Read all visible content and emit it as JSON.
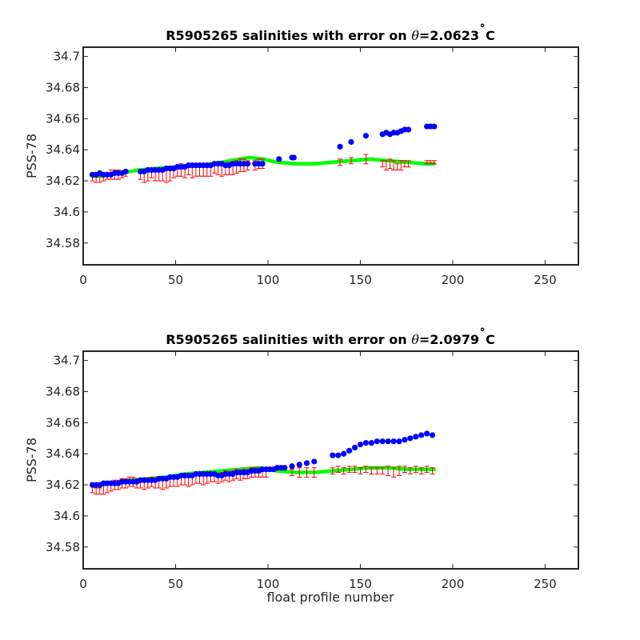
{
  "chart_data": [
    {
      "type": "scatter",
      "title_prefix": "R5905265 salinities with error on ",
      "title_symbol": "θ",
      "title_value": "=2.0623",
      "title_degree": "˚",
      "title_unit": "C",
      "xlabel": "",
      "ylabel": "PSS-78",
      "xlim": [
        0,
        268
      ],
      "ylim": [
        34.566,
        34.706
      ],
      "xticks": [
        0,
        50,
        100,
        150,
        200,
        250
      ],
      "yticks": [
        34.58,
        34.6,
        34.62,
        34.64,
        34.66,
        34.68,
        34.7
      ],
      "ytick_labels": [
        "34.58",
        "34.6",
        "34.62",
        "34.64",
        "34.66",
        "34.68",
        "34.7"
      ],
      "colors": {
        "float": "#0000ff",
        "mapped": "#00ff00",
        "error": "#ff0000"
      },
      "series": [
        {
          "role": "float",
          "x": [
            5,
            7,
            9,
            11,
            13,
            15,
            17,
            19,
            21,
            23,
            31,
            33,
            35,
            37,
            39,
            41,
            43,
            45,
            47,
            49,
            51,
            53,
            55,
            57,
            59,
            61,
            63,
            65,
            67,
            69,
            71,
            73,
            75,
            77,
            79,
            81,
            83,
            85,
            87,
            89,
            93,
            95,
            97,
            106,
            113,
            114,
            139,
            145,
            153,
            162,
            164,
            166,
            168,
            170,
            172,
            174,
            176,
            186,
            188,
            190
          ],
          "y": [
            34.624,
            34.624,
            34.625,
            34.624,
            34.624,
            34.624,
            34.625,
            34.625,
            34.625,
            34.626,
            34.626,
            34.626,
            34.627,
            34.627,
            34.627,
            34.627,
            34.627,
            34.628,
            34.628,
            34.628,
            34.629,
            34.629,
            34.629,
            34.63,
            34.63,
            34.63,
            34.63,
            34.63,
            34.63,
            34.63,
            34.631,
            34.631,
            34.631,
            34.63,
            34.63,
            34.631,
            34.631,
            34.631,
            34.631,
            34.631,
            34.631,
            34.631,
            34.631,
            34.634,
            34.635,
            34.635,
            34.642,
            34.645,
            34.649,
            34.65,
            34.651,
            34.65,
            34.651,
            34.651,
            34.652,
            34.653,
            34.653,
            34.655,
            34.655,
            34.655
          ]
        },
        {
          "role": "mapped",
          "x": [
            5,
            10,
            15,
            20,
            25,
            30,
            40,
            50,
            60,
            70,
            80,
            90,
            97,
            105,
            115,
            125,
            135,
            145,
            155,
            165,
            175,
            185,
            190
          ],
          "y": [
            34.623,
            34.623,
            34.624,
            34.625,
            34.626,
            34.627,
            34.628,
            34.629,
            34.63,
            34.631,
            34.633,
            34.635,
            34.634,
            34.632,
            34.631,
            34.631,
            34.632,
            34.633,
            34.634,
            34.633,
            34.632,
            34.631,
            34.631
          ]
        },
        {
          "role": "error",
          "x": [
            5,
            7,
            9,
            11,
            13,
            15,
            17,
            19,
            21,
            23,
            31,
            33,
            35,
            37,
            39,
            41,
            43,
            45,
            47,
            49,
            51,
            53,
            55,
            57,
            59,
            61,
            63,
            65,
            67,
            69,
            71,
            73,
            75,
            77,
            79,
            81,
            83,
            85,
            87,
            89,
            93,
            95,
            97,
            139,
            145,
            153,
            162,
            164,
            166,
            168,
            170,
            172,
            174,
            176,
            186,
            188,
            190
          ],
          "y": [
            34.622,
            34.621,
            34.621,
            34.622,
            34.623,
            34.624,
            34.624,
            34.624,
            34.624,
            34.625,
            34.624,
            34.623,
            34.624,
            34.625,
            34.624,
            34.623,
            34.624,
            34.623,
            34.624,
            34.625,
            34.626,
            34.627,
            34.626,
            34.627,
            34.626,
            34.627,
            34.626,
            34.627,
            34.627,
            34.627,
            34.628,
            34.628,
            34.627,
            34.627,
            34.628,
            34.628,
            34.629,
            34.63,
            34.63,
            34.63,
            34.63,
            34.631,
            34.631,
            34.632,
            34.633,
            34.634,
            34.631,
            34.63,
            34.631,
            34.63,
            34.629,
            34.63,
            34.631,
            34.631,
            34.632,
            34.632,
            34.632
          ],
          "err": [
            0.002,
            0.002,
            0.002,
            0.002,
            0.002,
            0.003,
            0.003,
            0.003,
            0.002,
            0.002,
            0.003,
            0.004,
            0.004,
            0.003,
            0.004,
            0.003,
            0.004,
            0.004,
            0.004,
            0.003,
            0.003,
            0.004,
            0.004,
            0.003,
            0.004,
            0.004,
            0.003,
            0.004,
            0.004,
            0.004,
            0.003,
            0.004,
            0.004,
            0.003,
            0.004,
            0.004,
            0.004,
            0.004,
            0.004,
            0.003,
            0.003,
            0.003,
            0.003,
            0.002,
            0.002,
            0.003,
            0.002,
            0.003,
            0.003,
            0.003,
            0.002,
            0.003,
            0.002,
            0.002,
            0.001,
            0.001,
            0.001
          ]
        }
      ]
    },
    {
      "type": "scatter",
      "title_prefix": "R5905265 salinities with error on ",
      "title_symbol": "θ",
      "title_value": "=2.0979",
      "title_degree": "˚",
      "title_unit": "C",
      "xlabel": "float profile number",
      "ylabel": "PSS-78",
      "xlim": [
        0,
        268
      ],
      "ylim": [
        34.566,
        34.706
      ],
      "xticks": [
        0,
        50,
        100,
        150,
        200,
        250
      ],
      "yticks": [
        34.58,
        34.6,
        34.62,
        34.64,
        34.66,
        34.68,
        34.7
      ],
      "ytick_labels": [
        "34.58",
        "34.6",
        "34.62",
        "34.64",
        "34.66",
        "34.68",
        "34.7"
      ],
      "colors": {
        "float": "#0000ff",
        "mapped": "#00ff00",
        "error": "#ff0000"
      },
      "series": [
        {
          "role": "float",
          "x": [
            5,
            7,
            9,
            11,
            13,
            15,
            17,
            19,
            21,
            23,
            25,
            27,
            29,
            31,
            33,
            35,
            37,
            39,
            41,
            43,
            45,
            47,
            49,
            51,
            53,
            55,
            57,
            59,
            61,
            63,
            65,
            67,
            69,
            71,
            73,
            75,
            77,
            79,
            81,
            83,
            85,
            87,
            89,
            91,
            93,
            95,
            97,
            99,
            101,
            103,
            105,
            107,
            109,
            113,
            117,
            121,
            125,
            135,
            138,
            141,
            144,
            147,
            150,
            153,
            156,
            159,
            162,
            165,
            168,
            171,
            174,
            177,
            180,
            183,
            186,
            189
          ],
          "y": [
            34.62,
            34.62,
            34.62,
            34.621,
            34.621,
            34.621,
            34.621,
            34.621,
            34.622,
            34.622,
            34.622,
            34.622,
            34.622,
            34.623,
            34.623,
            34.623,
            34.623,
            34.623,
            34.624,
            34.624,
            34.624,
            34.625,
            34.625,
            34.625,
            34.626,
            34.626,
            34.626,
            34.626,
            34.627,
            34.627,
            34.627,
            34.627,
            34.627,
            34.627,
            34.626,
            34.626,
            34.627,
            34.627,
            34.627,
            34.628,
            34.628,
            34.628,
            34.628,
            34.629,
            34.629,
            34.629,
            34.63,
            34.63,
            34.63,
            34.63,
            34.631,
            34.631,
            34.631,
            34.632,
            34.633,
            34.634,
            34.635,
            34.639,
            34.639,
            34.64,
            34.642,
            34.644,
            34.646,
            34.647,
            34.647,
            34.648,
            34.648,
            34.648,
            34.648,
            34.648,
            34.649,
            34.65,
            34.651,
            34.652,
            34.653,
            34.652
          ]
        },
        {
          "role": "mapped",
          "x": [
            5,
            15,
            25,
            35,
            45,
            55,
            65,
            75,
            85,
            95,
            105,
            115,
            125,
            135,
            145,
            155,
            165,
            175,
            185,
            190
          ],
          "y": [
            34.619,
            34.621,
            34.623,
            34.624,
            34.625,
            34.627,
            34.628,
            34.629,
            34.63,
            34.631,
            34.629,
            34.628,
            34.628,
            34.629,
            34.63,
            34.631,
            34.631,
            34.63,
            34.63,
            34.63
          ],
          "role_note": ""
        },
        {
          "role": "error",
          "x": [
            5,
            7,
            9,
            11,
            13,
            15,
            17,
            19,
            21,
            23,
            25,
            27,
            29,
            31,
            33,
            35,
            37,
            39,
            41,
            43,
            45,
            47,
            49,
            51,
            53,
            55,
            57,
            59,
            61,
            63,
            65,
            67,
            69,
            71,
            73,
            75,
            77,
            79,
            81,
            83,
            85,
            87,
            89,
            91,
            93,
            95,
            97,
            99,
            113,
            117,
            121,
            125,
            135,
            138,
            141,
            144,
            147,
            150,
            153,
            156,
            159,
            162,
            165,
            168,
            171,
            174,
            177,
            180,
            183,
            186,
            189
          ],
          "y": [
            34.617,
            34.616,
            34.616,
            34.617,
            34.618,
            34.619,
            34.62,
            34.62,
            34.621,
            34.621,
            34.622,
            34.622,
            34.621,
            34.621,
            34.62,
            34.621,
            34.622,
            34.621,
            34.621,
            34.62,
            34.621,
            34.622,
            34.622,
            34.622,
            34.623,
            34.623,
            34.622,
            34.623,
            34.624,
            34.624,
            34.623,
            34.624,
            34.625,
            34.625,
            34.624,
            34.625,
            34.626,
            34.625,
            34.626,
            34.627,
            34.626,
            34.627,
            34.627,
            34.628,
            34.628,
            34.628,
            34.628,
            34.628,
            34.628,
            34.628,
            34.628,
            34.628,
            34.629,
            34.63,
            34.629,
            34.63,
            34.63,
            34.629,
            34.63,
            34.629,
            34.629,
            34.629,
            34.629,
            34.628,
            34.629,
            34.63,
            34.629,
            34.63,
            34.629,
            34.63,
            34.629
          ],
          "err": [
            0.002,
            0.002,
            0.002,
            0.003,
            0.003,
            0.003,
            0.003,
            0.003,
            0.003,
            0.003,
            0.003,
            0.003,
            0.003,
            0.003,
            0.003,
            0.003,
            0.003,
            0.003,
            0.003,
            0.003,
            0.003,
            0.003,
            0.003,
            0.003,
            0.003,
            0.003,
            0.003,
            0.003,
            0.003,
            0.003,
            0.003,
            0.003,
            0.003,
            0.003,
            0.003,
            0.003,
            0.003,
            0.003,
            0.003,
            0.003,
            0.003,
            0.003,
            0.003,
            0.003,
            0.003,
            0.003,
            0.003,
            0.003,
            0.002,
            0.003,
            0.003,
            0.003,
            0.002,
            0.002,
            0.002,
            0.002,
            0.002,
            0.002,
            0.002,
            0.002,
            0.002,
            0.002,
            0.003,
            0.003,
            0.003,
            0.002,
            0.002,
            0.002,
            0.002,
            0.002,
            0.002
          ]
        }
      ]
    }
  ]
}
